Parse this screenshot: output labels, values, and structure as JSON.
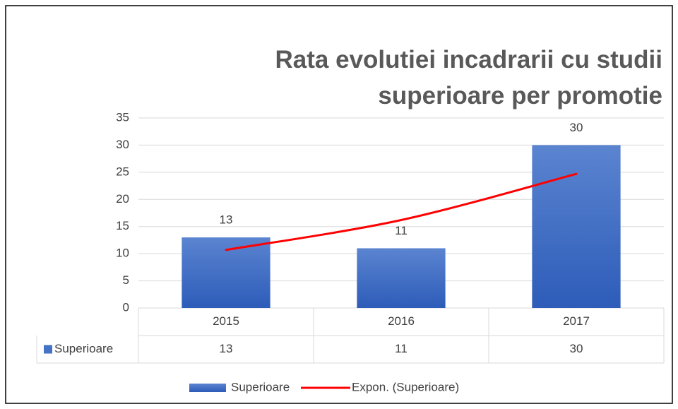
{
  "chart_data": {
    "type": "bar",
    "title": [
      "Rata evolutiei incadrarii cu studii",
      "superioare per promotie"
    ],
    "categories": [
      "2015",
      "2016",
      "2017"
    ],
    "series": [
      {
        "name": "Superioare",
        "type": "bar",
        "color": "#4472c4",
        "values": [
          13,
          11,
          30
        ]
      },
      {
        "name": "Expon. (Superioare)",
        "type": "line",
        "color": "#ff0000",
        "values": [
          10.7,
          16.2,
          24.7
        ]
      }
    ],
    "ylim": [
      0,
      35
    ],
    "yticks": [
      0,
      5,
      10,
      15,
      20,
      25,
      30,
      35
    ],
    "grid": true,
    "data_labels": true,
    "data_table": true,
    "legend": "bottom"
  }
}
